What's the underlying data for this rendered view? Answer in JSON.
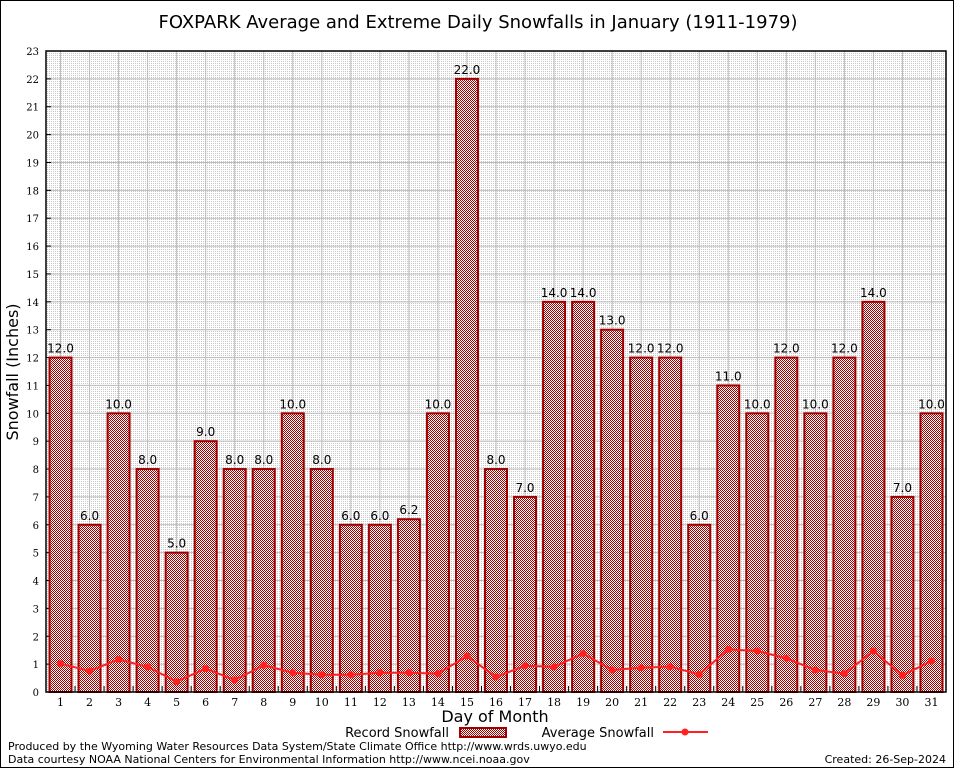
{
  "chart_data": {
    "type": "bar",
    "title": "FOXPARK Average and Extreme Daily Snowfalls in January (1911-1979)",
    "xlabel": "Day of Month",
    "ylabel": "Snowfall (Inches)",
    "ylim": [
      0,
      23
    ],
    "grid": true,
    "legend_position": "bottom",
    "categories": [
      "1",
      "2",
      "3",
      "4",
      "5",
      "6",
      "7",
      "8",
      "9",
      "10",
      "11",
      "12",
      "13",
      "14",
      "15",
      "16",
      "17",
      "18",
      "19",
      "20",
      "21",
      "22",
      "23",
      "24",
      "25",
      "26",
      "27",
      "28",
      "29",
      "30",
      "31"
    ],
    "series": [
      {
        "name": "Record Snowfall",
        "type": "bar",
        "color": "#a00000",
        "values": [
          12.0,
          6.0,
          10.0,
          8.0,
          5.0,
          9.0,
          8.0,
          8.0,
          10.0,
          8.0,
          6.0,
          6.0,
          6.2,
          10.0,
          22.0,
          8.0,
          7.0,
          14.0,
          14.0,
          13.0,
          12.0,
          12.0,
          6.0,
          11.0,
          10.0,
          12.0,
          10.0,
          12.0,
          14.0,
          7.0,
          10.0
        ],
        "labels": [
          "12.0",
          "6.0",
          "10.0",
          "8.0",
          "5.0",
          "9.0",
          "8.0",
          "8.0",
          "10.0",
          "8.0",
          "6.0",
          "6.0",
          "6.2",
          "10.0",
          "22.0",
          "8.0",
          "7.0",
          "14.0",
          "14.0",
          "13.0",
          "12.0",
          "12.0",
          "6.0",
          "11.0",
          "10.0",
          "12.0",
          "10.0",
          "12.0",
          "14.0",
          "7.0",
          "10.0"
        ]
      },
      {
        "name": "Average Snowfall",
        "type": "line",
        "color": "#ff2020",
        "values": [
          1.02,
          0.75,
          1.17,
          0.9,
          0.37,
          0.84,
          0.43,
          0.96,
          0.69,
          0.62,
          0.62,
          0.69,
          0.69,
          0.66,
          1.29,
          0.54,
          0.94,
          0.9,
          1.38,
          0.79,
          0.87,
          0.91,
          0.63,
          1.53,
          1.47,
          1.21,
          0.79,
          0.66,
          1.47,
          0.6,
          1.11
        ]
      }
    ]
  },
  "footer": {
    "produced": "Produced by the Wyoming Water Resources Data System/State Climate Office http://www.wrds.uwyo.edu",
    "courtesy": "Data courtesy NOAA National Centers for Environmental Information http://www.ncei.noaa.gov",
    "created": "Created: 26-Sep-2024"
  }
}
